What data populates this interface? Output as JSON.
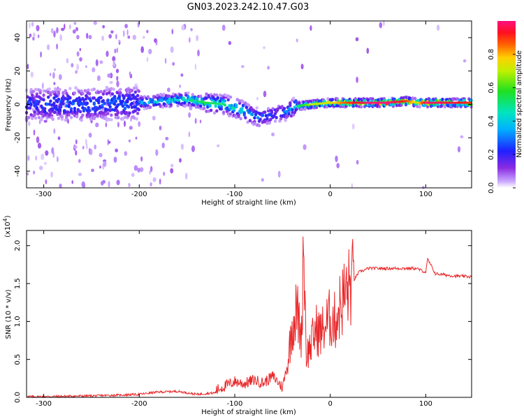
{
  "title": "GN03.2023.242.10.47.G03",
  "chart_data": [
    {
      "type": "heatmap",
      "xlabel": "Height of straight line (km)",
      "ylabel": "Frequency (Hz)",
      "xlim": [
        -318,
        148
      ],
      "ylim": [
        -50,
        50
      ],
      "xticks": [
        -300,
        -200,
        -100,
        0,
        100
      ],
      "yticks": [
        -40,
        -20,
        0,
        20,
        40
      ],
      "colorbar": {
        "label": "Normalized spectral amplitude",
        "range": [
          0,
          1
        ],
        "ticks": [
          0.0,
          0.2,
          0.4,
          0.6,
          0.8
        ]
      },
      "ridge": {
        "description_x": [
          -318,
          -250,
          -200,
          -180,
          -150,
          -130,
          -110,
          -90,
          -75,
          -60,
          -45,
          -35,
          -20,
          0,
          20,
          40,
          60,
          80,
          90,
          100,
          148
        ],
        "frequency_hz": [
          0,
          0,
          1,
          2,
          3,
          1,
          0,
          -4,
          -8,
          -6,
          -4,
          -1,
          0,
          1,
          1,
          1,
          1,
          2,
          1,
          1,
          1
        ],
        "peak_amplitude": [
          0.3,
          0.35,
          0.4,
          0.45,
          0.5,
          0.55,
          0.5,
          0.45,
          0.3,
          0.25,
          0.3,
          0.5,
          0.7,
          0.75,
          0.9,
          1.0,
          1.0,
          0.9,
          0.7,
          1.0,
          0.9
        ]
      }
    },
    {
      "type": "line",
      "xlabel": "Height of straight line (km)",
      "ylabel": "SNR (10 * v/v)",
      "multiplier": "(x10",
      "multiplier_exp": "4",
      "multiplier_close": ")",
      "xlim": [
        -318,
        148
      ],
      "ylim": [
        0,
        2.2
      ],
      "xticks": [
        -300,
        -200,
        -100,
        0,
        100
      ],
      "yticks": [
        0.0,
        0.5,
        1.0,
        1.5,
        2.0
      ],
      "series": [
        {
          "color": "#e8282a",
          "x": [
            -318,
            -300,
            -250,
            -220,
            -200,
            -180,
            -160,
            -140,
            -120,
            -110,
            -100,
            -90,
            -80,
            -70,
            -60,
            -50,
            -45,
            -40,
            -35,
            -30,
            -28,
            -25,
            -20,
            -15,
            -10,
            -5,
            0,
            5,
            10,
            15,
            20,
            25,
            30,
            40,
            60,
            80,
            90,
            100,
            102,
            110,
            130,
            148
          ],
          "y": [
            0.01,
            0.01,
            0.02,
            0.03,
            0.04,
            0.07,
            0.08,
            0.04,
            0.06,
            0.12,
            0.18,
            0.15,
            0.2,
            0.16,
            0.25,
            0.1,
            0.4,
            0.95,
            1.15,
            0.8,
            2.15,
            0.55,
            0.7,
            0.9,
            0.85,
            0.95,
            1.05,
            1.0,
            1.2,
            1.35,
            1.45,
            1.55,
            1.65,
            1.7,
            1.7,
            1.7,
            1.7,
            1.65,
            1.82,
            1.63,
            1.6,
            1.59
          ]
        }
      ]
    }
  ]
}
